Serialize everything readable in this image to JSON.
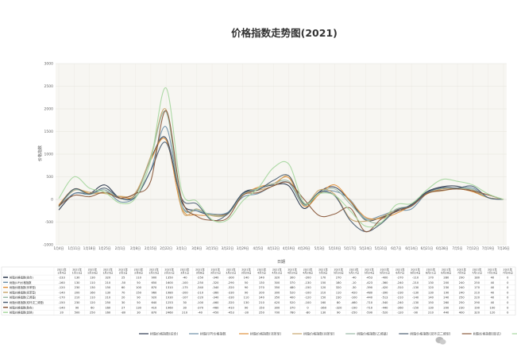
{
  "chart_data": {
    "type": "line",
    "title": "价格指数走势图(2021)",
    "ylabel": "价格指数",
    "xlabel": "日期",
    "ylim": [
      -1000,
      3000
    ],
    "yticks": [
      "3000",
      "2500",
      "2000",
      "1500",
      "1000",
      "500",
      "0",
      "-500",
      "-1000"
    ],
    "grid": true,
    "categories": [
      "1月4日",
      "1月11日",
      "1月18日",
      "1月25日",
      "2月1日",
      "2月8日",
      "2月15日",
      "2月22日",
      "3月1日",
      "3月8日",
      "3月15日",
      "3月22日",
      "3月29日",
      "4月5日",
      "4月12日",
      "4月19日",
      "4月26日",
      "5月3日",
      "5月10日",
      "5月17日",
      "5月24日",
      "5月31日",
      "6月7日",
      "6月14日",
      "6月21日",
      "6月28日",
      "7月5日",
      "7月12日",
      "7月19日",
      "7月26日"
    ],
    "table_dates": [
      "2021年1月4日",
      "2021年1月11日",
      "2021年1月18日",
      "2021年1月25日",
      "2021年2月1日",
      "2021年2月8日",
      "2021年2月15日",
      "2021年2月22日",
      "2021年3月1日",
      "2021年3月8日",
      "2021年3月15日",
      "2021年3月22日",
      "2021年3月29日",
      "2021年4月5日",
      "2021年4月12日",
      "2021年4月19日",
      "2021年4月26日",
      "2021年5月3日",
      "2021年5月10日",
      "2021年5月17日",
      "2021年5月24日",
      "2021年5月31日",
      "2021年6月7日",
      "2021年6月14日",
      "2021年6月21日",
      "2021年6月28日",
      "2021年7月5日",
      "2021年7月12日",
      "2021年7月19日",
      "2021年7月26日"
    ],
    "series": [
      {
        "name": "树脂价格指数(综合)",
        "color": "#2d3a4f",
        "values": [
          -233,
          130,
          130,
          320,
          25,
          110,
          900,
          1350,
          -40,
          -250,
          -340,
          -300,
          140,
          240,
          320,
          300,
          -200,
          170,
          270,
          -40,
          -453,
          -400,
          -270,
          -110,
          170,
          280,
          290,
          180,
          40,
          0
        ]
      },
      {
        "name": "树脂(UP)价格指数",
        "color": "#6d8fa8",
        "values": [
          -160,
          130,
          110,
          210,
          -50,
          50,
          650,
          1600,
          -100,
          -250,
          -320,
          -290,
          50,
          130,
          300,
          370,
          -130,
          150,
          180,
          -10,
          -423,
          -360,
          -240,
          -210,
          130,
          200,
          240,
          250,
          40,
          0
        ]
      },
      {
        "name": "树脂价格指数(邻苯型)",
        "color": "#e0913c",
        "values": [
          -120,
          230,
          130,
          150,
          60,
          100,
          870,
          1310,
          -175,
          -340,
          -340,
          -320,
          90,
          270,
          350,
          480,
          -150,
          120,
          320,
          -30,
          -390,
          -420,
          -310,
          -130,
          120,
          230,
          240,
          170,
          40,
          0
        ]
      },
      {
        "name": "树脂价格指数(间苯型)",
        "color": "#c8a76f",
        "values": [
          -140,
          200,
          160,
          130,
          70,
          150,
          960,
          1980,
          -200,
          -210,
          -360,
          -330,
          90,
          200,
          300,
          520,
          -100,
          210,
          110,
          -420,
          -480,
          -390,
          -230,
          -130,
          130,
          190,
          240,
          210,
          40,
          0
        ]
      },
      {
        "name": "树脂价格指数(乙烯基)",
        "color": "#9ab9a6",
        "values": [
          -170,
          210,
          110,
          210,
          20,
          90,
          920,
          1930,
          -107,
          -220,
          -340,
          -330,
          110,
          240,
          350,
          400,
          -120,
          150,
          230,
          -100,
          -440,
          -513,
          -210,
          -140,
          140,
          240,
          250,
          220,
          40,
          0
        ]
      },
      {
        "name": "树脂价格指数(双环戊二烯型)",
        "color": "#4b5e72",
        "values": [
          -150,
          230,
          120,
          250,
          30,
          50,
          640,
          1253,
          30,
          -100,
          -460,
          -320,
          130,
          210,
          420,
          520,
          -100,
          160,
          80,
          -460,
          -710,
          -540,
          -240,
          -130,
          150,
          260,
          250,
          290,
          40,
          0
        ]
      },
      {
        "name": "树脂价格指数(胶衣)",
        "color": "#8a5a3c",
        "values": [
          -140,
          90,
          60,
          160,
          27,
          130,
          410,
          1960,
          30,
          -370,
          -460,
          -410,
          90,
          150,
          300,
          370,
          0,
          -360,
          -320,
          -190,
          -710,
          -440,
          -260,
          -150,
          130,
          200,
          230,
          190,
          100,
          0
        ]
      },
      {
        "name": "树脂价格指数(其他)",
        "color": "#a8d7a0",
        "values": [
          20,
          500,
          250,
          160,
          -80,
          30,
          870,
          2460,
          210,
          -40,
          -450,
          -453,
          -30,
          250,
          700,
          780,
          -80,
          130,
          90,
          -250,
          -590,
          -520,
          -120,
          -90,
          210,
          440,
          400,
          320,
          120,
          0
        ]
      }
    ]
  }
}
